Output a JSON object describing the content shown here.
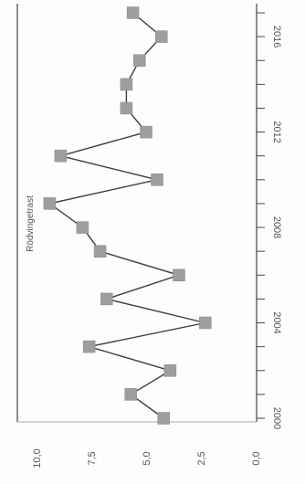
{
  "chart_data": {
    "type": "line",
    "title": "Rödvingetrast",
    "xlabel": "",
    "ylabel": "",
    "orientation": "rotated-90-clockwise",
    "x": [
      2000,
      2001,
      2002,
      2003,
      2004,
      2005,
      2006,
      2007,
      2008,
      2009,
      2010,
      2011,
      2012,
      2013,
      2014,
      2015,
      2016,
      2017
    ],
    "x_tick_labels": [
      "2000",
      "2004",
      "2008",
      "2012",
      "2016"
    ],
    "x_tick_values": [
      2000,
      2004,
      2008,
      2012,
      2016
    ],
    "series": [
      {
        "values": [
          4.2,
          5.7,
          3.9,
          7.6,
          2.3,
          6.8,
          3.5,
          7.1,
          7.9,
          9.4,
          4.5,
          8.9,
          5.0,
          5.9,
          5.9,
          5.3,
          4.3,
          5.6
        ],
        "color": "#3d3d3d",
        "marker_color": "#9e9e9e"
      }
    ],
    "y_tick_labels": [
      "0,0",
      "2,5",
      "5,0",
      "7,5",
      "10,0"
    ],
    "y_tick_values": [
      0,
      2.5,
      5,
      7.5,
      10
    ],
    "ylim": [
      0,
      10
    ],
    "grid": false
  }
}
